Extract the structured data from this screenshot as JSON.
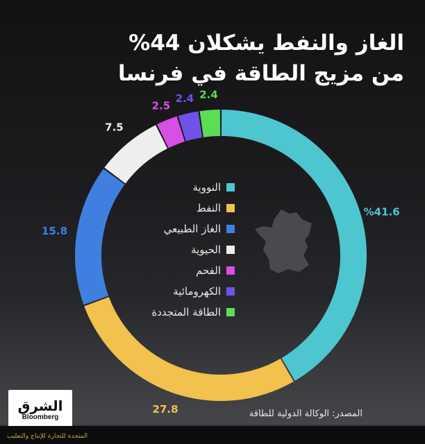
{
  "title": {
    "line1": "الغاز والنفط يشكلان 44%",
    "line2": "من مزيج الطاقة في فرنسا"
  },
  "chart_data": {
    "type": "pie",
    "subtype": "donut",
    "series": [
      {
        "name": "النووية",
        "value": 41.6,
        "label": "%41.6",
        "color": "#4ec6cf"
      },
      {
        "name": "النفط",
        "value": 27.8,
        "label": "27.8",
        "color": "#f2c14e"
      },
      {
        "name": "الغاز الطبيعي",
        "value": 15.8,
        "label": "15.8",
        "color": "#3f7fe0"
      },
      {
        "name": "الحيوية",
        "value": 7.5,
        "label": "7.5",
        "color": "#eeeeee"
      },
      {
        "name": "الفحم",
        "value": 2.5,
        "label": "2.5",
        "color": "#d84fe6"
      },
      {
        "name": "الكهرومائية",
        "value": 2.4,
        "label": "2.4",
        "color": "#6f53e8"
      },
      {
        "name": "الطاقة المتجددة",
        "value": 2.4,
        "label": "2.4",
        "color": "#5bdd56"
      }
    ],
    "legend_position": "center"
  },
  "source": "المصدر: الوكالة الدولية للطاقة",
  "logo": {
    "line1": "الشرق",
    "line2": "Bloomberg"
  },
  "footer": "المتحدة للتجارة للإنتاج والتعليب"
}
